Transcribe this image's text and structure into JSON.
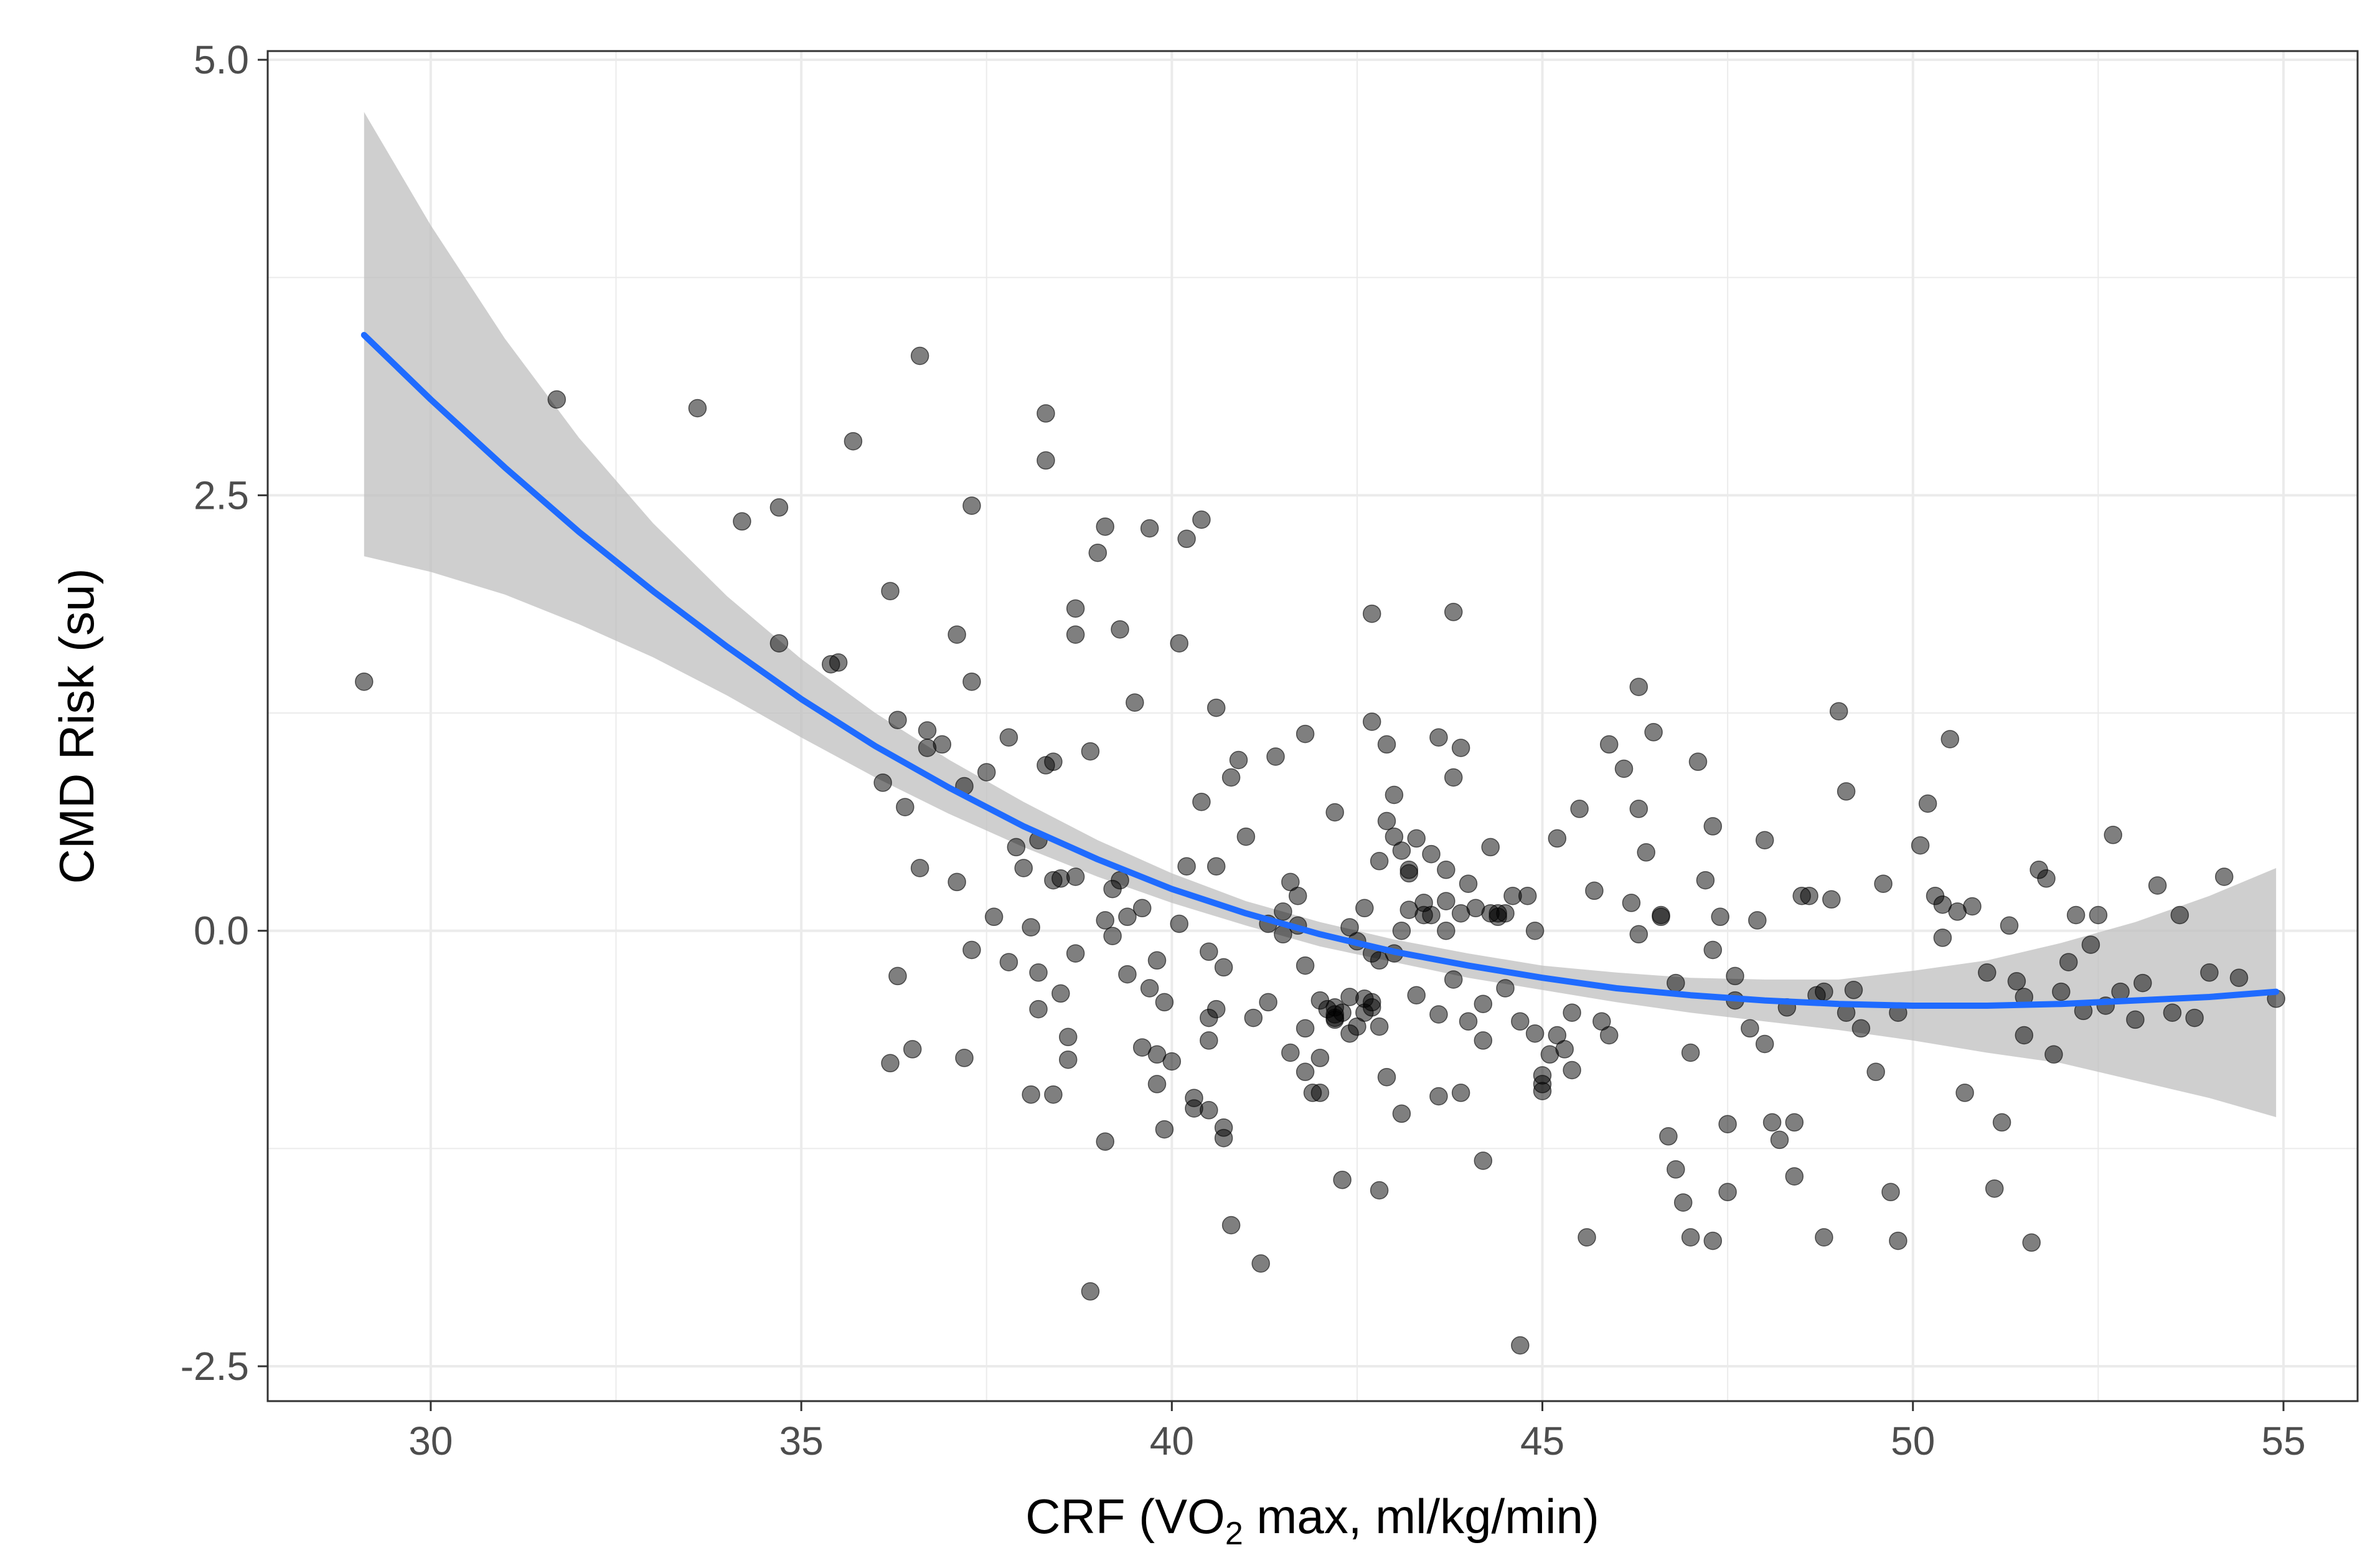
{
  "chart_data": {
    "type": "scatter",
    "title": "",
    "xlabel": {
      "prefix": "CRF (VO",
      "subscript": "2",
      "suffix": " max, ml/kg/min)"
    },
    "ylabel": "CMD Risk (su)",
    "xlim": [
      27.8,
      56.0
    ],
    "ylim": [
      -2.7,
      5.05
    ],
    "x_ticks": [
      30,
      35,
      40,
      45,
      50,
      55
    ],
    "x_tick_labels": [
      "30",
      "35",
      "40",
      "45",
      "50",
      "55"
    ],
    "y_ticks": [
      -2.5,
      0.0,
      2.5,
      5.0
    ],
    "y_tick_labels": [
      "-2.5",
      "0.0",
      "2.5",
      "5.0"
    ],
    "x_minor_ticks": [
      32.5,
      37.5,
      42.5,
      47.5,
      52.5
    ],
    "y_minor_ticks": [
      -1.25,
      1.25,
      3.75
    ],
    "grid": true,
    "colors": {
      "points": "#000000",
      "fit_line": "#1f6bff",
      "confidence_band": "#bfbfbf",
      "grid": "#ebebeb",
      "panel_border": "#333333"
    },
    "points": [
      [
        29.1,
        1.43
      ],
      [
        31.7,
        3.05
      ],
      [
        33.6,
        3.0
      ],
      [
        34.2,
        2.35
      ],
      [
        34.7,
        2.43
      ],
      [
        34.7,
        1.65
      ],
      [
        35.4,
        1.53
      ],
      [
        35.5,
        1.54
      ],
      [
        35.7,
        2.81
      ],
      [
        36.1,
        0.85
      ],
      [
        36.2,
        1.95
      ],
      [
        36.2,
        -0.76
      ],
      [
        36.3,
        -0.26
      ],
      [
        36.3,
        1.21
      ],
      [
        36.4,
        0.71
      ],
      [
        36.5,
        -0.68
      ],
      [
        36.6,
        3.3
      ],
      [
        36.6,
        0.36
      ],
      [
        36.7,
        1.05
      ],
      [
        36.7,
        1.15
      ],
      [
        36.9,
        1.07
      ],
      [
        37.1,
        1.7
      ],
      [
        37.1,
        0.28
      ],
      [
        37.2,
        0.83
      ],
      [
        37.2,
        -0.73
      ],
      [
        37.3,
        2.44
      ],
      [
        37.3,
        1.43
      ],
      [
        37.3,
        -0.11
      ],
      [
        37.5,
        0.91
      ],
      [
        37.6,
        0.08
      ],
      [
        37.8,
        1.11
      ],
      [
        37.8,
        -0.18
      ],
      [
        37.9,
        0.48
      ],
      [
        38.0,
        0.36
      ],
      [
        38.1,
        0.02
      ],
      [
        38.1,
        -0.94
      ],
      [
        38.2,
        0.52
      ],
      [
        38.2,
        -0.24
      ],
      [
        38.2,
        -0.45
      ],
      [
        38.3,
        2.97
      ],
      [
        38.3,
        2.7
      ],
      [
        38.3,
        0.95
      ],
      [
        38.4,
        0.97
      ],
      [
        38.4,
        0.29
      ],
      [
        38.4,
        -0.94
      ],
      [
        38.5,
        0.3
      ],
      [
        38.5,
        -0.36
      ],
      [
        38.6,
        -0.61
      ],
      [
        38.6,
        -0.74
      ],
      [
        38.7,
        1.85
      ],
      [
        38.7,
        1.7
      ],
      [
        38.7,
        0.31
      ],
      [
        38.7,
        -0.13
      ],
      [
        38.9,
        1.03
      ],
      [
        38.9,
        -2.07
      ],
      [
        39.0,
        2.17
      ],
      [
        39.1,
        2.32
      ],
      [
        39.1,
        0.06
      ],
      [
        39.1,
        -1.21
      ],
      [
        39.2,
        0.24
      ],
      [
        39.2,
        -0.03
      ],
      [
        39.3,
        1.73
      ],
      [
        39.3,
        0.29
      ],
      [
        39.4,
        0.08
      ],
      [
        39.4,
        -0.25
      ],
      [
        39.5,
        1.31
      ],
      [
        39.6,
        -0.67
      ],
      [
        39.6,
        0.13
      ],
      [
        39.7,
        2.31
      ],
      [
        39.7,
        -0.33
      ],
      [
        39.8,
        -0.17
      ],
      [
        39.8,
        -0.71
      ],
      [
        39.8,
        -0.88
      ],
      [
        39.9,
        -1.14
      ],
      [
        39.9,
        -0.41
      ],
      [
        40.0,
        -0.75
      ],
      [
        40.1,
        1.65
      ],
      [
        40.1,
        0.04
      ],
      [
        40.2,
        2.25
      ],
      [
        40.2,
        0.37
      ],
      [
        40.3,
        -0.96
      ],
      [
        40.3,
        -1.02
      ],
      [
        40.4,
        0.74
      ],
      [
        40.4,
        2.36
      ],
      [
        40.5,
        -0.12
      ],
      [
        40.5,
        -1.03
      ],
      [
        40.5,
        -0.5
      ],
      [
        40.5,
        -0.63
      ],
      [
        40.6,
        1.28
      ],
      [
        40.6,
        0.37
      ],
      [
        40.6,
        -0.45
      ],
      [
        40.7,
        -1.13
      ],
      [
        40.7,
        -1.19
      ],
      [
        40.7,
        -0.21
      ],
      [
        40.8,
        0.88
      ],
      [
        40.8,
        -1.69
      ],
      [
        40.9,
        0.98
      ],
      [
        41.0,
        0.54
      ],
      [
        41.1,
        -0.5
      ],
      [
        41.2,
        -1.91
      ],
      [
        41.3,
        -0.41
      ],
      [
        41.3,
        0.04
      ],
      [
        41.4,
        1.0
      ],
      [
        41.5,
        -0.02
      ],
      [
        41.5,
        0.11
      ],
      [
        41.6,
        -0.7
      ],
      [
        41.6,
        0.28
      ],
      [
        41.7,
        0.03
      ],
      [
        41.7,
        0.2
      ],
      [
        41.8,
        1.13
      ],
      [
        41.8,
        -0.2
      ],
      [
        41.8,
        -0.56
      ],
      [
        41.8,
        -0.81
      ],
      [
        41.9,
        -0.93
      ],
      [
        42.0,
        -0.4
      ],
      [
        42.0,
        -0.93
      ],
      [
        42.0,
        -0.73
      ],
      [
        42.1,
        -0.45
      ],
      [
        42.2,
        0.68
      ],
      [
        42.2,
        -0.44
      ],
      [
        42.2,
        -0.5
      ],
      [
        42.2,
        -0.51
      ],
      [
        42.2,
        -0.48
      ],
      [
        42.3,
        -1.43
      ],
      [
        42.3,
        -0.47
      ],
      [
        42.4,
        0.02
      ],
      [
        42.4,
        -0.38
      ],
      [
        42.4,
        -0.59
      ],
      [
        42.5,
        -0.55
      ],
      [
        42.5,
        -0.06
      ],
      [
        42.6,
        0.13
      ],
      [
        42.6,
        -0.39
      ],
      [
        42.6,
        -0.47
      ],
      [
        42.7,
        1.82
      ],
      [
        42.7,
        1.2
      ],
      [
        42.7,
        -0.13
      ],
      [
        42.7,
        -0.41
      ],
      [
        42.7,
        -0.44
      ],
      [
        42.8,
        0.4
      ],
      [
        42.8,
        -1.49
      ],
      [
        42.8,
        -0.17
      ],
      [
        42.8,
        -0.55
      ],
      [
        42.9,
        -0.84
      ],
      [
        42.9,
        1.07
      ],
      [
        42.9,
        0.63
      ],
      [
        43.0,
        -0.13
      ],
      [
        43.0,
        0.54
      ],
      [
        43.0,
        0.78
      ],
      [
        43.1,
        0.46
      ],
      [
        43.1,
        0.0
      ],
      [
        43.1,
        -1.05
      ],
      [
        43.2,
        0.35
      ],
      [
        43.2,
        0.33
      ],
      [
        43.2,
        0.12
      ],
      [
        43.3,
        0.53
      ],
      [
        43.3,
        -0.37
      ],
      [
        43.4,
        0.16
      ],
      [
        43.4,
        0.09
      ],
      [
        43.5,
        0.44
      ],
      [
        43.5,
        0.09
      ],
      [
        43.6,
        1.11
      ],
      [
        43.6,
        -0.48
      ],
      [
        43.6,
        -0.95
      ],
      [
        43.7,
        0.0
      ],
      [
        43.7,
        0.17
      ],
      [
        43.7,
        0.35
      ],
      [
        43.8,
        1.83
      ],
      [
        43.8,
        0.88
      ],
      [
        43.8,
        -0.28
      ],
      [
        43.9,
        -0.93
      ],
      [
        43.9,
        1.05
      ],
      [
        43.9,
        0.1
      ],
      [
        44.0,
        0.27
      ],
      [
        44.0,
        -0.52
      ],
      [
        44.1,
        0.13
      ],
      [
        44.2,
        -1.32
      ],
      [
        44.2,
        -0.42
      ],
      [
        44.2,
        -0.63
      ],
      [
        44.3,
        0.48
      ],
      [
        44.3,
        0.1
      ],
      [
        44.4,
        0.08
      ],
      [
        44.4,
        0.1
      ],
      [
        44.5,
        0.1
      ],
      [
        44.5,
        -0.33
      ],
      [
        44.6,
        0.2
      ],
      [
        44.7,
        -0.52
      ],
      [
        44.7,
        -2.38
      ],
      [
        44.8,
        0.2
      ],
      [
        44.9,
        0.0
      ],
      [
        44.9,
        -0.59
      ],
      [
        45.0,
        -0.83
      ],
      [
        45.0,
        -0.88
      ],
      [
        45.0,
        -0.92
      ],
      [
        45.1,
        -0.71
      ],
      [
        45.2,
        0.53
      ],
      [
        45.2,
        -0.6
      ],
      [
        45.3,
        -0.68
      ],
      [
        45.4,
        -0.8
      ],
      [
        45.4,
        -0.47
      ],
      [
        45.5,
        0.7
      ],
      [
        45.6,
        -1.76
      ],
      [
        45.7,
        0.23
      ],
      [
        45.8,
        -0.52
      ],
      [
        45.9,
        1.07
      ],
      [
        45.9,
        -0.6
      ],
      [
        46.1,
        0.93
      ],
      [
        46.2,
        0.16
      ],
      [
        46.3,
        1.4
      ],
      [
        46.3,
        0.7
      ],
      [
        46.3,
        -0.02
      ],
      [
        46.4,
        0.45
      ],
      [
        46.5,
        1.14
      ],
      [
        46.6,
        0.09
      ],
      [
        46.6,
        0.08
      ],
      [
        46.7,
        -1.18
      ],
      [
        46.8,
        -0.3
      ],
      [
        46.8,
        -1.37
      ],
      [
        46.9,
        -1.56
      ],
      [
        47.0,
        -1.76
      ],
      [
        47.0,
        -0.7
      ],
      [
        47.1,
        0.97
      ],
      [
        47.2,
        0.29
      ],
      [
        47.3,
        -0.11
      ],
      [
        47.3,
        0.6
      ],
      [
        47.3,
        -1.78
      ],
      [
        47.4,
        0.08
      ],
      [
        47.5,
        -1.5
      ],
      [
        47.5,
        -1.11
      ],
      [
        47.6,
        -0.4
      ],
      [
        47.6,
        -0.26
      ],
      [
        47.8,
        -0.56
      ],
      [
        47.9,
        0.06
      ],
      [
        48.0,
        -0.65
      ],
      [
        48.0,
        0.52
      ],
      [
        48.1,
        -1.1
      ],
      [
        48.2,
        -1.2
      ],
      [
        48.3,
        -0.44
      ],
      [
        48.4,
        -1.41
      ],
      [
        48.4,
        -1.1
      ],
      [
        48.5,
        0.2
      ],
      [
        48.6,
        0.2
      ],
      [
        48.7,
        -0.37
      ],
      [
        48.8,
        -1.76
      ],
      [
        48.8,
        -0.35
      ],
      [
        48.9,
        0.18
      ],
      [
        49.0,
        1.26
      ],
      [
        49.1,
        -0.47
      ],
      [
        49.1,
        0.8
      ],
      [
        49.2,
        -0.34
      ],
      [
        49.3,
        -0.56
      ],
      [
        49.5,
        -0.81
      ],
      [
        49.6,
        0.27
      ],
      [
        49.7,
        -1.5
      ],
      [
        49.8,
        -0.47
      ],
      [
        49.8,
        -1.78
      ],
      [
        50.1,
        0.49
      ],
      [
        50.2,
        0.73
      ],
      [
        50.3,
        0.2
      ],
      [
        50.4,
        0.15
      ],
      [
        50.4,
        -0.04
      ],
      [
        50.5,
        1.1
      ],
      [
        50.6,
        0.11
      ],
      [
        50.7,
        -0.93
      ],
      [
        50.8,
        0.14
      ],
      [
        51.0,
        -0.24
      ],
      [
        51.1,
        -1.48
      ],
      [
        51.2,
        -1.1
      ],
      [
        51.3,
        0.03
      ],
      [
        51.4,
        -0.29
      ],
      [
        51.5,
        -0.6
      ],
      [
        51.5,
        -0.38
      ],
      [
        51.6,
        -1.79
      ],
      [
        51.7,
        0.35
      ],
      [
        51.8,
        0.3
      ],
      [
        51.9,
        -0.71
      ],
      [
        52.0,
        -0.35
      ],
      [
        52.1,
        -0.18
      ],
      [
        52.2,
        0.09
      ],
      [
        52.3,
        -0.46
      ],
      [
        52.4,
        -0.08
      ],
      [
        52.5,
        0.09
      ],
      [
        52.6,
        -0.43
      ],
      [
        52.7,
        0.55
      ],
      [
        52.8,
        -0.35
      ],
      [
        53.0,
        -0.51
      ],
      [
        53.1,
        -0.3
      ],
      [
        53.3,
        0.26
      ],
      [
        53.5,
        -0.47
      ],
      [
        53.6,
        0.09
      ],
      [
        53.8,
        -0.5
      ],
      [
        54.0,
        -0.24
      ],
      [
        54.2,
        0.31
      ],
      [
        54.4,
        -0.27
      ],
      [
        54.9,
        -0.39
      ]
    ],
    "fit": {
      "method": "quadratic smooth with 95% confidence band",
      "x": [
        29.1,
        30.0,
        31.0,
        32.0,
        33.0,
        34.0,
        35.0,
        36.0,
        37.0,
        38.0,
        39.0,
        40.0,
        41.0,
        42.0,
        43.0,
        44.0,
        45.0,
        46.0,
        47.0,
        48.0,
        49.0,
        50.0,
        51.0,
        52.0,
        53.0,
        54.0,
        54.9
      ],
      "y": [
        3.42,
        3.05,
        2.66,
        2.29,
        1.95,
        1.63,
        1.33,
        1.06,
        0.82,
        0.6,
        0.41,
        0.24,
        0.1,
        -0.02,
        -0.12,
        -0.2,
        -0.27,
        -0.33,
        -0.37,
        -0.4,
        -0.42,
        -0.43,
        -0.43,
        -0.42,
        -0.4,
        -0.38,
        -0.35
      ],
      "lower": [
        2.15,
        2.06,
        1.93,
        1.76,
        1.57,
        1.35,
        1.11,
        0.88,
        0.67,
        0.48,
        0.31,
        0.16,
        0.03,
        -0.09,
        -0.18,
        -0.27,
        -0.34,
        -0.41,
        -0.47,
        -0.52,
        -0.57,
        -0.63,
        -0.7,
        -0.76,
        -0.86,
        -0.96,
        -1.07
      ],
      "upper": [
        4.7,
        4.05,
        3.4,
        2.83,
        2.34,
        1.92,
        1.56,
        1.25,
        0.98,
        0.74,
        0.52,
        0.33,
        0.17,
        0.05,
        -0.05,
        -0.13,
        -0.2,
        -0.24,
        -0.27,
        -0.28,
        -0.28,
        -0.23,
        -0.17,
        -0.07,
        0.05,
        0.2,
        0.36
      ]
    }
  }
}
